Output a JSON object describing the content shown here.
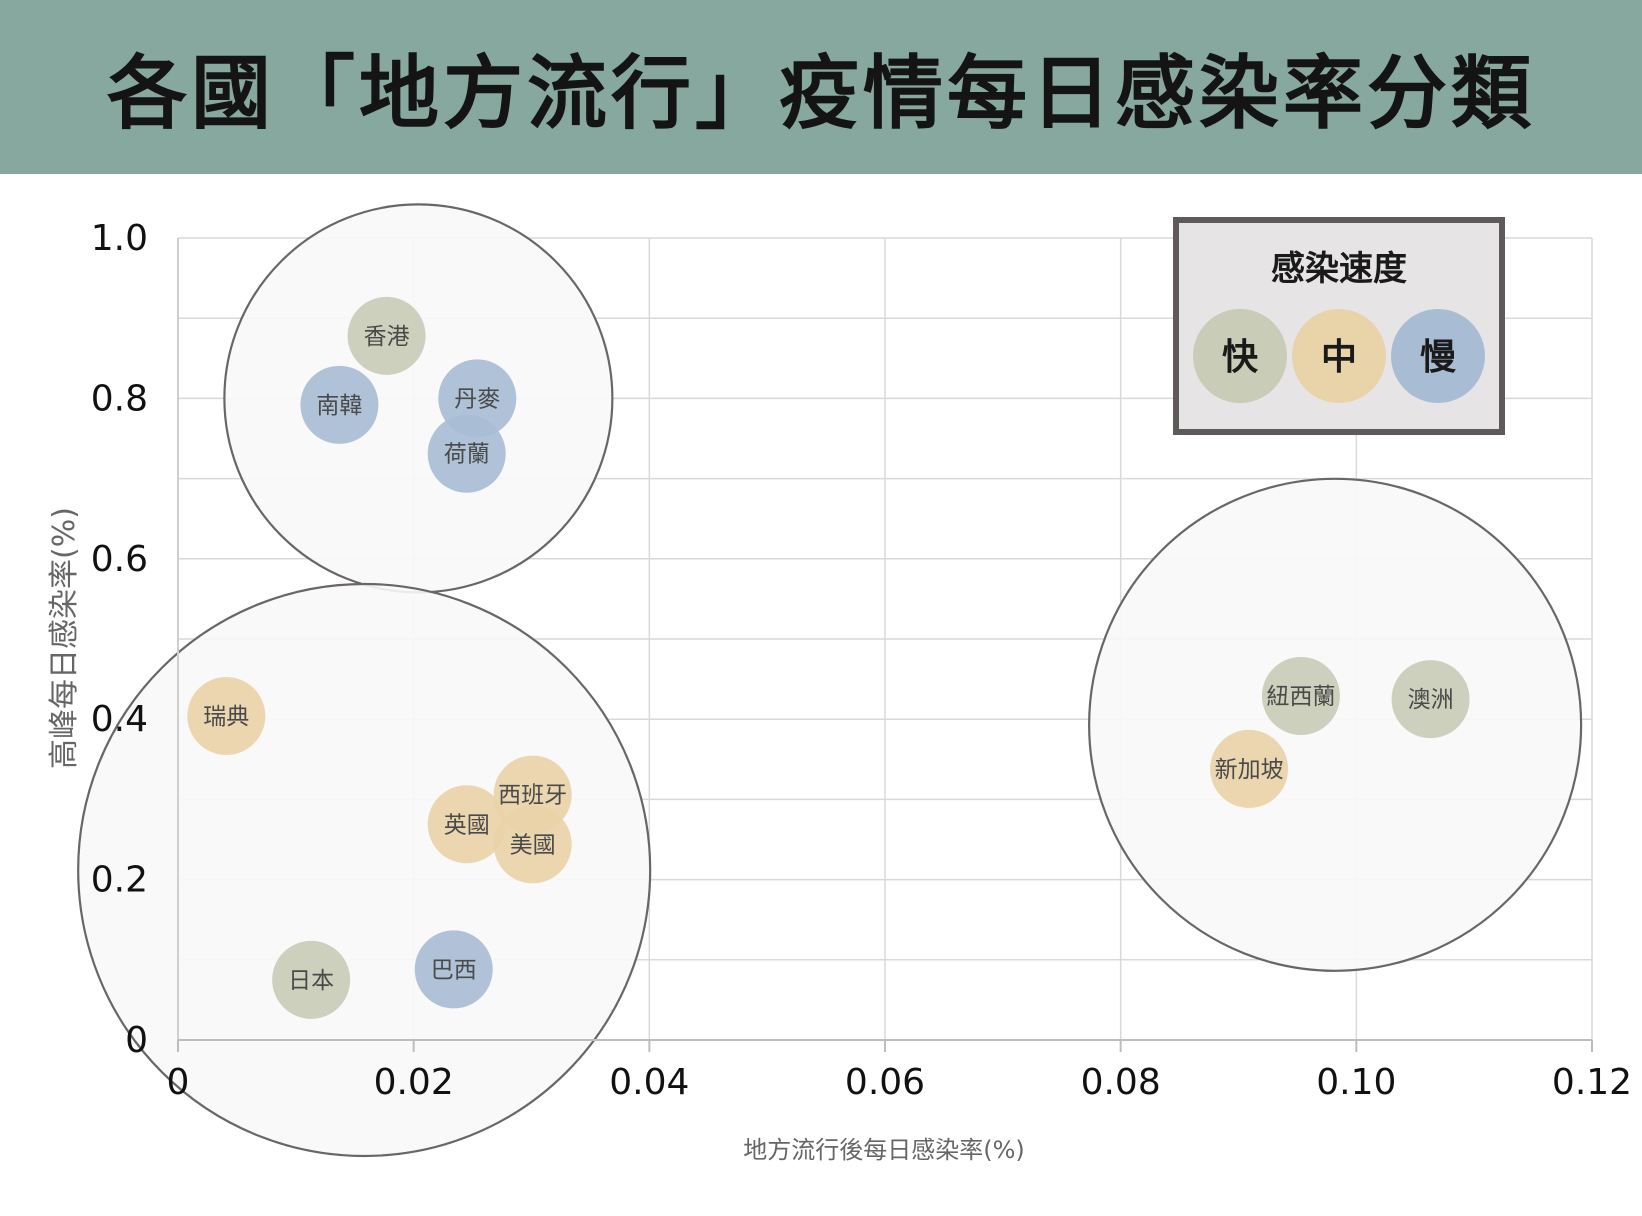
{
  "title": "各國「地方流行」疫情每日感染率分類",
  "colors": {
    "header_bg": "#86a89e",
    "fast": "#c9ccb6",
    "medium": "#e9d3a8",
    "slow": "#a8bdd4",
    "group_fill": "#f8f8f8",
    "group_stroke": "#6b6666",
    "grid": "#d9d9d9"
  },
  "chart_data": {
    "type": "scatter",
    "xlabel": "地方流行後每日感染率(%)",
    "ylabel": "高峰每日感染率(%)",
    "xlim": [
      0,
      0.12
    ],
    "ylim": [
      0,
      1.0
    ],
    "x_ticks": [
      "0",
      "0.02",
      "0.04",
      "0.06",
      "0.08",
      "0.10",
      "0.12"
    ],
    "y_ticks": [
      "0",
      "0.2",
      "0.4",
      "0.6",
      "0.8",
      "1.0"
    ],
    "grid": true,
    "legend": {
      "title": "感染速度",
      "position": "top-right",
      "items": [
        {
          "label": "快",
          "category": "fast"
        },
        {
          "label": "中",
          "category": "medium"
        },
        {
          "label": "慢",
          "category": "slow"
        }
      ]
    },
    "points": [
      {
        "label": "香港",
        "x": 0.0177,
        "y": 0.878,
        "speed": "fast"
      },
      {
        "label": "南韓",
        "x": 0.0137,
        "y": 0.792,
        "speed": "slow"
      },
      {
        "label": "丹麥",
        "x": 0.0254,
        "y": 0.8,
        "speed": "slow"
      },
      {
        "label": "荷蘭",
        "x": 0.0245,
        "y": 0.731,
        "speed": "slow"
      },
      {
        "label": "瑞典",
        "x": 0.0041,
        "y": 0.404,
        "speed": "medium"
      },
      {
        "label": "西班牙",
        "x": 0.0301,
        "y": 0.306,
        "speed": "medium"
      },
      {
        "label": "英國",
        "x": 0.0245,
        "y": 0.269,
        "speed": "medium"
      },
      {
        "label": "美國",
        "x": 0.0301,
        "y": 0.244,
        "speed": "medium"
      },
      {
        "label": "日本",
        "x": 0.0113,
        "y": 0.075,
        "speed": "fast"
      },
      {
        "label": "巴西",
        "x": 0.0234,
        "y": 0.088,
        "speed": "slow"
      },
      {
        "label": "紐西蘭",
        "x": 0.0953,
        "y": 0.429,
        "speed": "fast"
      },
      {
        "label": "澳洲",
        "x": 0.1063,
        "y": 0.425,
        "speed": "fast"
      },
      {
        "label": "新加坡",
        "x": 0.0909,
        "y": 0.338,
        "speed": "medium"
      }
    ],
    "groups": [
      {
        "center_x": 0.0204,
        "center_y": 0.8
      },
      {
        "center_x": 0.0158,
        "center_y": 0.212
      },
      {
        "center_x": 0.0982,
        "center_y": 0.393
      }
    ]
  }
}
